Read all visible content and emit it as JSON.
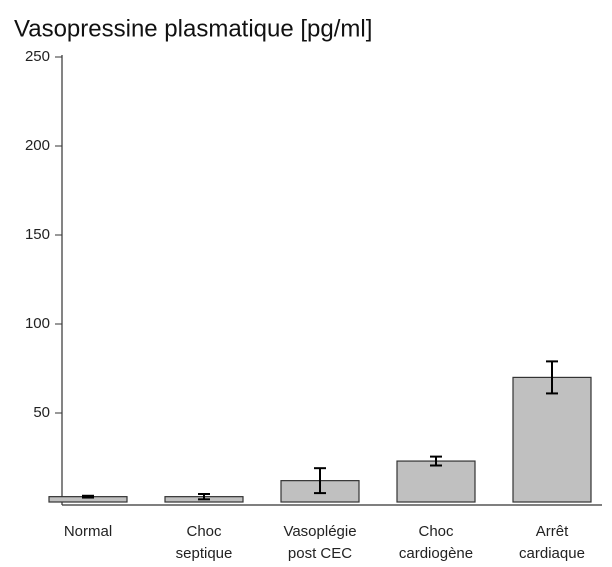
{
  "chart_data": {
    "type": "bar",
    "title": "Vasopressine plasmatique [pg/ml]",
    "categories": [
      [
        "Normal"
      ],
      [
        "Choc",
        "septique"
      ],
      [
        "Vasoplégie",
        "post CEC"
      ],
      [
        "Choc",
        "cardiogène"
      ],
      [
        "Arrêt",
        "cardiaque"
      ]
    ],
    "values": [
      3,
      3,
      12,
      23,
      70
    ],
    "errors": [
      0.5,
      1.5,
      7,
      2.5,
      9
    ],
    "color": "#c0c0c0",
    "ylim": [
      0,
      250
    ],
    "yticks": [
      50,
      100,
      150,
      200,
      250
    ],
    "grid": false
  }
}
